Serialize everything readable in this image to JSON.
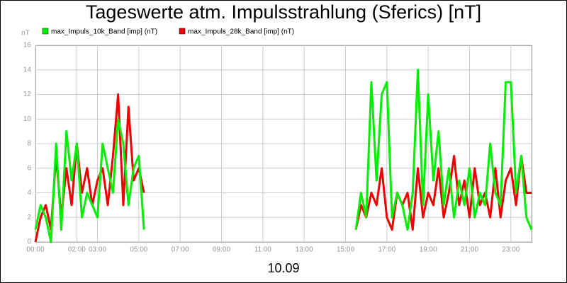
{
  "chart_data": {
    "type": "line",
    "title": "Tageswerte atm. Impulsstrahlung (Sferics) [nT]",
    "y_label": "nT",
    "x_label": "10.09",
    "x": [
      0,
      0.25,
      0.5,
      0.75,
      1,
      1.25,
      1.5,
      1.75,
      2,
      2.25,
      2.5,
      2.75,
      3,
      3.25,
      3.5,
      3.75,
      4,
      4.25,
      4.5,
      4.75,
      5,
      5.25,
      10,
      15.5,
      15.75,
      16,
      16.25,
      16.5,
      16.75,
      17,
      17.25,
      17.5,
      17.75,
      18,
      18.25,
      18.5,
      18.75,
      19,
      19.25,
      19.5,
      19.75,
      20,
      20.25,
      20.5,
      20.75,
      21,
      21.25,
      21.5,
      21.75,
      22,
      22.25,
      22.5,
      22.75,
      23,
      23.25,
      23.5,
      23.75,
      24
    ],
    "series": [
      {
        "name": "max_Impuls_10k_Band [imp] (nT)",
        "color": "#00ee00",
        "values": [
          1,
          3,
          2,
          0,
          8,
          1,
          9,
          5,
          8,
          2,
          4,
          3,
          2,
          8,
          6,
          4,
          10,
          8,
          3,
          6,
          7,
          1,
          null,
          1,
          4,
          2,
          13,
          5,
          12,
          13,
          2,
          4,
          3,
          1,
          4,
          14,
          3,
          12,
          5,
          9,
          3,
          6,
          2,
          5,
          3,
          6,
          2,
          4,
          3,
          8,
          4,
          3,
          13,
          13,
          4,
          7,
          2,
          1
        ]
      },
      {
        "name": "max_Impuls_28k_Band [imp] (nT)",
        "color": "#ee0000",
        "values": [
          0,
          2,
          3,
          1,
          7,
          2,
          6,
          3,
          8,
          4,
          6,
          3,
          5,
          6,
          3,
          7,
          12,
          3,
          11,
          5,
          6,
          4,
          null,
          1,
          3,
          2,
          4,
          3,
          6,
          2,
          1,
          4,
          3,
          4,
          1,
          6,
          2,
          4,
          3,
          6,
          2,
          4,
          7,
          3,
          5,
          2,
          6,
          3,
          4,
          2,
          6,
          2,
          5,
          6,
          3,
          7,
          4,
          4
        ]
      }
    ],
    "xlim": [
      0,
      24
    ],
    "xticks": [
      {
        "value": 0,
        "label": "00:00"
      },
      {
        "value": 2,
        "label": "02:00"
      },
      {
        "value": 3,
        "label": "03:00"
      },
      {
        "value": 5,
        "label": "05:00"
      },
      {
        "value": 7,
        "label": "07:00"
      },
      {
        "value": 9,
        "label": "09:00"
      },
      {
        "value": 11,
        "label": "11:00"
      },
      {
        "value": 13,
        "label": "13:00"
      },
      {
        "value": 15,
        "label": "15:00"
      },
      {
        "value": 17,
        "label": "17:00"
      },
      {
        "value": 19,
        "label": "19:00"
      },
      {
        "value": 21,
        "label": "21:00"
      },
      {
        "value": 23,
        "label": "23:00"
      }
    ],
    "ylim": [
      0,
      16
    ],
    "yticks": [
      0,
      2,
      4,
      6,
      8,
      10,
      12,
      14,
      16
    ],
    "grid": true
  }
}
